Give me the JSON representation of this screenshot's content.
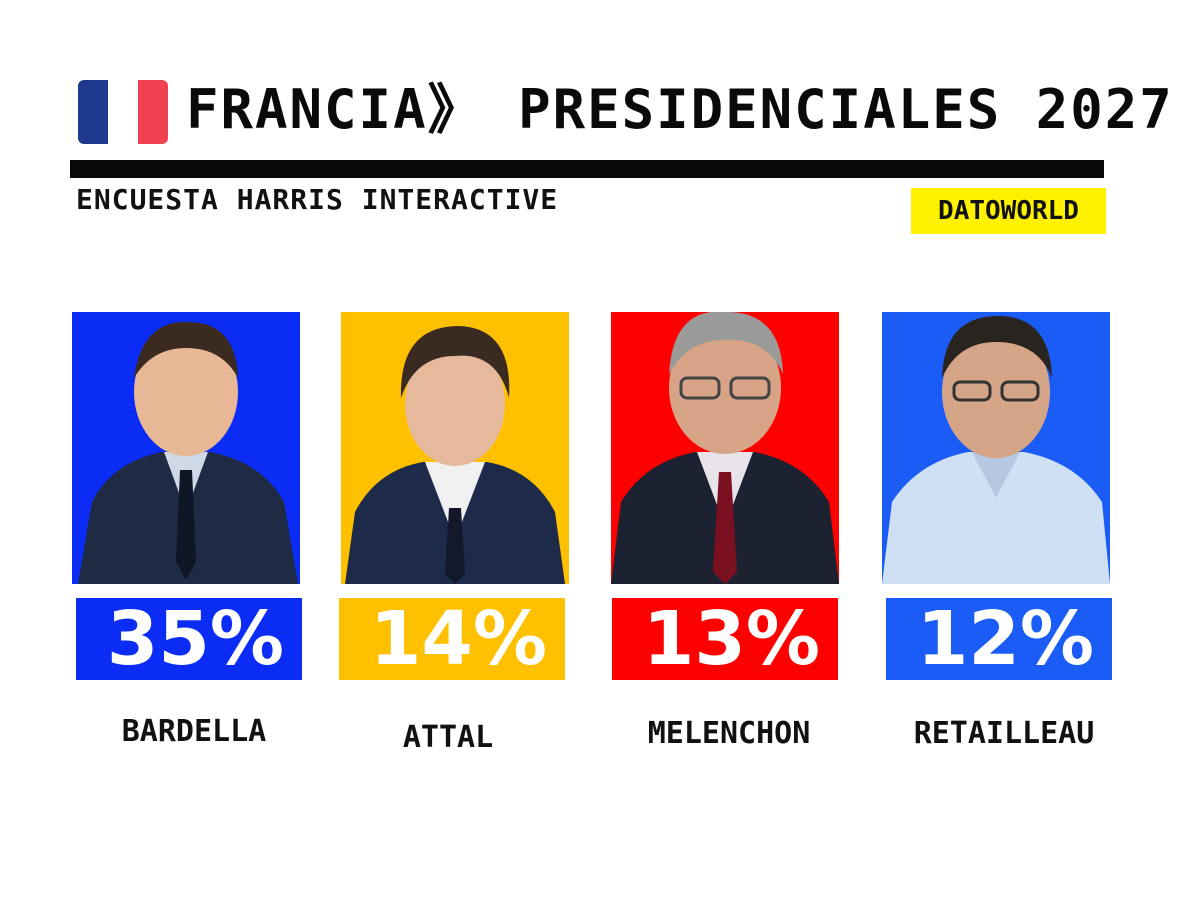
{
  "header": {
    "title": "FRANCIA》 PRESIDENCIALES 2027",
    "subtitle": "ENCUESTA HARRIS INTERACTIVE",
    "brand_badge": "DATOWORLD",
    "flag_colors": [
      "#1d3a8f",
      "#ffffff",
      "#ef4150"
    ],
    "rule_color": "#0a0a0a",
    "badge_color": "#fff200"
  },
  "candidates": [
    {
      "name": "BARDELLA",
      "percent": "35%",
      "color": "#0b2cf5"
    },
    {
      "name": "ATTAL",
      "percent": "14%",
      "color": "#ffc000"
    },
    {
      "name": "MELENCHON",
      "percent": "13%",
      "color": "#ff0000"
    },
    {
      "name": "RETAILLEAU",
      "percent": "12%",
      "color": "#1a5cf5"
    }
  ]
}
